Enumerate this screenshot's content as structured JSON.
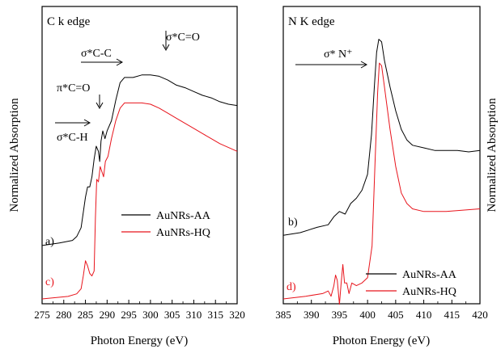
{
  "colors": {
    "series_AuNRs_AA": "#000000",
    "series_AuNRs_HQ": "#e8141c",
    "frame": "#000000"
  },
  "chart_data": [
    {
      "type": "line",
      "panel_title": "C k edge",
      "xlabel": "Photon Energy (eV)",
      "ylabel": "Normalized Absorption",
      "xlim": [
        275,
        320
      ],
      "x_ticks": [
        "275",
        "280",
        "285",
        "290",
        "295",
        "300",
        "305",
        "310",
        "315",
        "320"
      ],
      "ylim": [
        0,
        1
      ],
      "series": [
        {
          "name": "AuNRs-AA",
          "curve_label": "a)",
          "color": "#000000",
          "points": [
            [
              275,
              0.21
            ],
            [
              279,
              0.22
            ],
            [
              282,
              0.23
            ],
            [
              283,
              0.245
            ],
            [
              284,
              0.28
            ],
            [
              284.5,
              0.34
            ],
            [
              285,
              0.4
            ],
            [
              285.5,
              0.44
            ],
            [
              286,
              0.44
            ],
            [
              286.5,
              0.48
            ],
            [
              287,
              0.55
            ],
            [
              287.5,
              0.6
            ],
            [
              288,
              0.58
            ],
            [
              288.3,
              0.54
            ],
            [
              288.6,
              0.62
            ],
            [
              289,
              0.66
            ],
            [
              289.5,
              0.63
            ],
            [
              290,
              0.66
            ],
            [
              291,
              0.7
            ],
            [
              292,
              0.78
            ],
            [
              293,
              0.85
            ],
            [
              294,
              0.87
            ],
            [
              296,
              0.87
            ],
            [
              298,
              0.88
            ],
            [
              300,
              0.88
            ],
            [
              302,
              0.875
            ],
            [
              304,
              0.86
            ],
            [
              306,
              0.84
            ],
            [
              308,
              0.83
            ],
            [
              310,
              0.815
            ],
            [
              312,
              0.8
            ],
            [
              314,
              0.79
            ],
            [
              316,
              0.775
            ],
            [
              318,
              0.765
            ],
            [
              320,
              0.76
            ]
          ]
        },
        {
          "name": "AuNRs-HQ",
          "curve_label": "c)",
          "color": "#e8141c",
          "points": [
            [
              275,
              0.0
            ],
            [
              281,
              0.01
            ],
            [
              283,
              0.02
            ],
            [
              284,
              0.04
            ],
            [
              284.5,
              0.09
            ],
            [
              285,
              0.15
            ],
            [
              285.5,
              0.13
            ],
            [
              286,
              0.1
            ],
            [
              286.5,
              0.09
            ],
            [
              287,
              0.11
            ],
            [
              287.3,
              0.32
            ],
            [
              287.6,
              0.47
            ],
            [
              288,
              0.46
            ],
            [
              288.4,
              0.52
            ],
            [
              288.8,
              0.5
            ],
            [
              289.2,
              0.48
            ],
            [
              289.6,
              0.54
            ],
            [
              290.2,
              0.56
            ],
            [
              291,
              0.63
            ],
            [
              292,
              0.7
            ],
            [
              293,
              0.75
            ],
            [
              294,
              0.77
            ],
            [
              296,
              0.77
            ],
            [
              298,
              0.77
            ],
            [
              300,
              0.765
            ],
            [
              302,
              0.75
            ],
            [
              304,
              0.73
            ],
            [
              306,
              0.71
            ],
            [
              308,
              0.69
            ],
            [
              310,
              0.67
            ],
            [
              312,
              0.65
            ],
            [
              314,
              0.63
            ],
            [
              316,
              0.61
            ],
            [
              318,
              0.595
            ],
            [
              320,
              0.58
            ]
          ]
        }
      ],
      "legend": {
        "placement": "center-right",
        "entries": [
          "AuNRs-AA",
          "AuNRs-HQ"
        ]
      },
      "annotations": [
        "σ*C=O",
        "σ*C-C",
        "π*C=O",
        "σ*C-H"
      ]
    },
    {
      "type": "line",
      "panel_title": "N K edge",
      "xlabel": "Photon Energy (eV)",
      "ylabel": "Normalized Absorption",
      "xlim": [
        385,
        420
      ],
      "x_ticks": [
        "385",
        "390",
        "395",
        "400",
        "405",
        "410",
        "415",
        "420"
      ],
      "ylim": [
        0,
        1
      ],
      "series": [
        {
          "name": "AuNRs-AA",
          "curve_label": "b)",
          "color": "#000000",
          "points": [
            [
              385,
              0.24
            ],
            [
              388,
              0.25
            ],
            [
              391,
              0.27
            ],
            [
              393,
              0.28
            ],
            [
              394,
              0.31
            ],
            [
              395,
              0.33
            ],
            [
              396,
              0.32
            ],
            [
              397,
              0.36
            ],
            [
              398,
              0.38
            ],
            [
              399,
              0.41
            ],
            [
              400,
              0.47
            ],
            [
              400.7,
              0.62
            ],
            [
              401.2,
              0.8
            ],
            [
              401.6,
              0.93
            ],
            [
              402,
              0.98
            ],
            [
              402.5,
              0.97
            ],
            [
              403,
              0.9
            ],
            [
              404,
              0.8
            ],
            [
              405,
              0.71
            ],
            [
              406,
              0.64
            ],
            [
              407,
              0.6
            ],
            [
              408,
              0.58
            ],
            [
              410,
              0.57
            ],
            [
              412,
              0.56
            ],
            [
              414,
              0.56
            ],
            [
              416,
              0.56
            ],
            [
              418,
              0.555
            ],
            [
              420,
              0.56
            ]
          ]
        },
        {
          "name": "AuNRs-HQ",
          "curve_label": "d)",
          "color": "#e8141c",
          "points": [
            [
              385,
              0.0
            ],
            [
              389,
              0.01
            ],
            [
              392,
              0.02
            ],
            [
              393,
              0.03
            ],
            [
              393.5,
              0.01
            ],
            [
              394,
              0.05
            ],
            [
              394.3,
              0.09
            ],
            [
              394.6,
              0.07
            ],
            [
              395,
              -0.02
            ],
            [
              395.3,
              0.06
            ],
            [
              395.6,
              0.13
            ],
            [
              395.9,
              0.06
            ],
            [
              396.3,
              0.06
            ],
            [
              396.7,
              0.02
            ],
            [
              397.2,
              0.06
            ],
            [
              398,
              0.05
            ],
            [
              399,
              0.06
            ],
            [
              400,
              0.08
            ],
            [
              400.8,
              0.2
            ],
            [
              401.3,
              0.5
            ],
            [
              401.8,
              0.78
            ],
            [
              402.1,
              0.89
            ],
            [
              402.5,
              0.88
            ],
            [
              403,
              0.8
            ],
            [
              404,
              0.64
            ],
            [
              405,
              0.5
            ],
            [
              406,
              0.4
            ],
            [
              407,
              0.36
            ],
            [
              408,
              0.34
            ],
            [
              410,
              0.33
            ],
            [
              414,
              0.33
            ],
            [
              417,
              0.335
            ],
            [
              420,
              0.34
            ]
          ]
        }
      ],
      "legend": {
        "placement": "bottom-right",
        "entries": [
          "AuNRs-AA",
          "AuNRs-HQ"
        ]
      },
      "annotations": [
        "σ* N⁺"
      ]
    }
  ]
}
